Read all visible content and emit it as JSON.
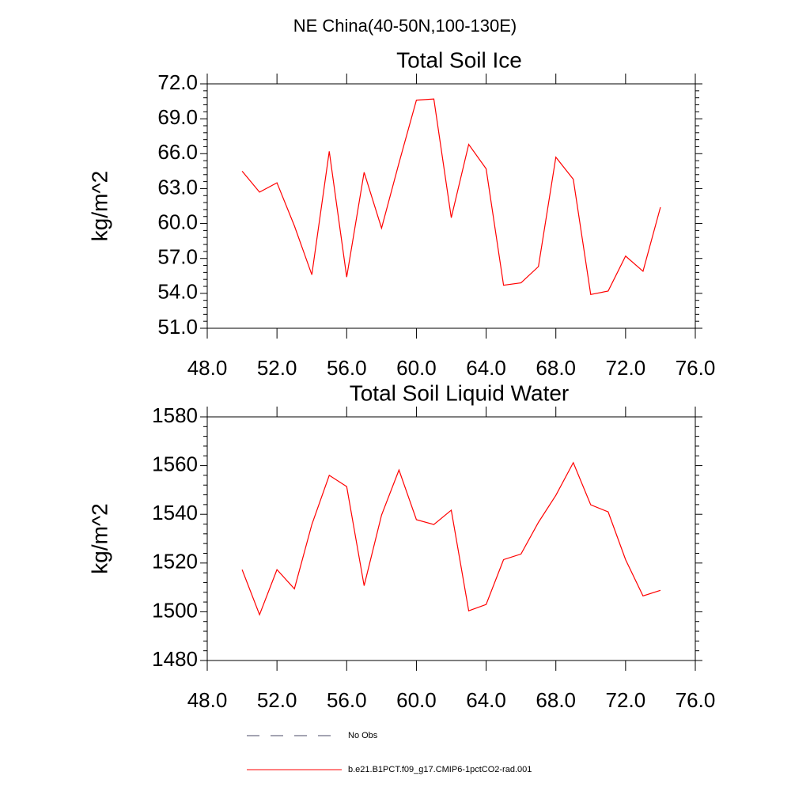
{
  "title": "NE China(40-50N,100-130E)",
  "obs_legend": {
    "name": "No Obs",
    "color": "#4a4a66"
  },
  "chart_data": [
    {
      "type": "line",
      "title": "Total Soil Ice",
      "y_label": "kg/m^2",
      "x": [
        50,
        51,
        52,
        53,
        54,
        55,
        56,
        57,
        58,
        59,
        60,
        61,
        62,
        63,
        64,
        65,
        66,
        67,
        68,
        69,
        70,
        71,
        72,
        73,
        74
      ],
      "series": [
        {
          "name": "b.e21.B1PCT.f09_g17.CMIP6-1pctCO2-rad.001",
          "color": "#ff0000",
          "values": [
            64.5,
            62.7,
            63.5,
            59.8,
            55.6,
            66.2,
            55.4,
            64.4,
            59.6,
            65.2,
            70.6,
            70.7,
            60.5,
            66.8,
            64.7,
            54.7,
            54.9,
            56.3,
            65.7,
            63.8,
            53.9,
            54.2,
            57.2,
            55.9,
            61.4
          ]
        }
      ],
      "xlim": [
        48,
        76
      ],
      "xticks": [
        {
          "value": 48,
          "label": "48.0"
        },
        {
          "value": 52,
          "label": "52.0"
        },
        {
          "value": 56,
          "label": "56.0"
        },
        {
          "value": 60,
          "label": "60.0"
        },
        {
          "value": 64,
          "label": "64.0"
        },
        {
          "value": 68,
          "label": "68.0"
        },
        {
          "value": 72,
          "label": "72.0"
        },
        {
          "value": 76,
          "label": "76.0"
        }
      ],
      "ylim": [
        51,
        72
      ],
      "yticks": [
        {
          "value": 51,
          "label": "51.0"
        },
        {
          "value": 54,
          "label": "54.0"
        },
        {
          "value": 57,
          "label": "57.0"
        },
        {
          "value": 60,
          "label": "60.0"
        },
        {
          "value": 63,
          "label": "63.0"
        },
        {
          "value": 66,
          "label": "66.0"
        },
        {
          "value": 69,
          "label": "69.0"
        },
        {
          "value": 72,
          "label": "72.0"
        }
      ]
    },
    {
      "type": "line",
      "title": "Total Soil Liquid Water",
      "y_label": "kg/m^2",
      "x": [
        50,
        51,
        52,
        53,
        54,
        55,
        56,
        57,
        58,
        59,
        60,
        61,
        62,
        63,
        64,
        65,
        66,
        67,
        68,
        69,
        70,
        71,
        72,
        73,
        74
      ],
      "series": [
        {
          "name": "b.e21.B1PCT.f09_g17.CMIP6-1pctCO2-rad.001",
          "color": "#ff0000",
          "values": [
            1517.3,
            1498.8,
            1517.3,
            1509.4,
            1535.8,
            1556.0,
            1551.4,
            1510.7,
            1539.7,
            1558.2,
            1537.8,
            1535.8,
            1541.7,
            1500.4,
            1503.0,
            1521.4,
            1523.7,
            1536.7,
            1547.8,
            1561.2,
            1543.9,
            1541.0,
            1521.4,
            1506.5,
            1508.8
          ]
        }
      ],
      "xlim": [
        48,
        76
      ],
      "xticks": [
        {
          "value": 48,
          "label": "48.0"
        },
        {
          "value": 52,
          "label": "52.0"
        },
        {
          "value": 56,
          "label": "56.0"
        },
        {
          "value": 60,
          "label": "60.0"
        },
        {
          "value": 64,
          "label": "64.0"
        },
        {
          "value": 68,
          "label": "68.0"
        },
        {
          "value": 72,
          "label": "72.0"
        },
        {
          "value": 76,
          "label": "76.0"
        }
      ],
      "ylim": [
        1480,
        1580
      ],
      "yticks": [
        1480,
        1500,
        1520,
        1540,
        1560,
        1580
      ]
    }
  ]
}
